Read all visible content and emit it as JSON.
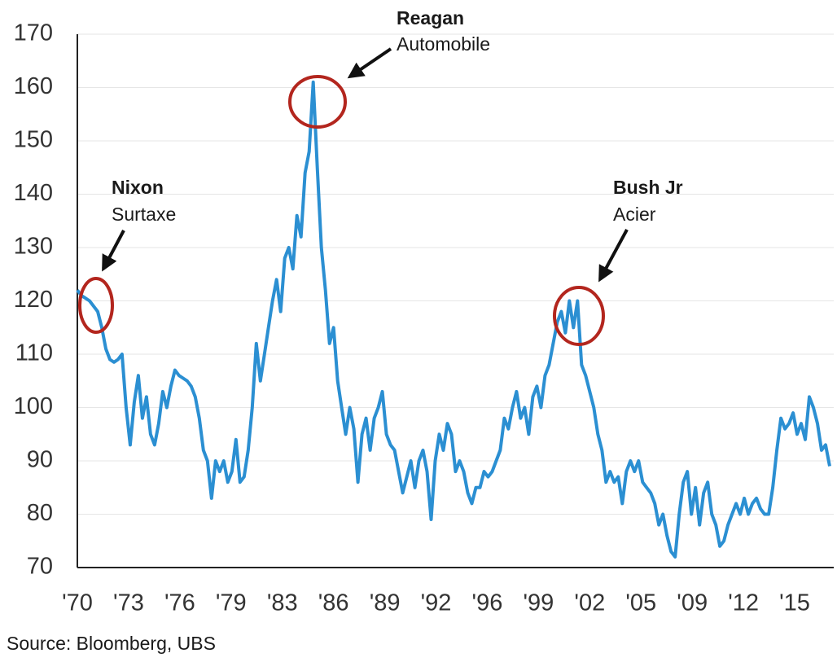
{
  "chart_data": {
    "type": "line",
    "annotations": [
      {
        "title": "Nixon",
        "text": "Surtaxe"
      },
      {
        "title": "Reagan",
        "text": "Automobile"
      },
      {
        "title": "Bush Jr",
        "text": "Acier"
      }
    ],
    "source": "Source: Bloomberg, UBS",
    "color": "#2b8fd2",
    "grid": true,
    "ylim": [
      70,
      170
    ],
    "yticks": [
      70,
      80,
      90,
      100,
      110,
      120,
      130,
      140,
      150,
      160,
      170
    ],
    "xlim": [
      1970,
      2016.4
    ],
    "xticks": [
      {
        "value": 1970,
        "label": "'70"
      },
      {
        "value": 1973.15,
        "label": "'73"
      },
      {
        "value": 1976.3,
        "label": "'76"
      },
      {
        "value": 1979.45,
        "label": "'79"
      },
      {
        "value": 1982.6,
        "label": "'83"
      },
      {
        "value": 1985.75,
        "label": "'86"
      },
      {
        "value": 1988.9,
        "label": "'89"
      },
      {
        "value": 1992.05,
        "label": "'92"
      },
      {
        "value": 1995.2,
        "label": "'96"
      },
      {
        "value": 1998.35,
        "label": "'99"
      },
      {
        "value": 2001.5,
        "label": "'02"
      },
      {
        "value": 2004.65,
        "label": "'05"
      },
      {
        "value": 2007.8,
        "label": "'09"
      },
      {
        "value": 2010.95,
        "label": "'12"
      },
      {
        "value": 2014.1,
        "label": "'15"
      }
    ],
    "x": [
      1970,
      1970.25,
      1970.5,
      1970.75,
      1971,
      1971.25,
      1971.5,
      1971.75,
      1972,
      1972.25,
      1972.5,
      1972.75,
      1973,
      1973.25,
      1973.5,
      1973.75,
      1974,
      1974.25,
      1974.5,
      1974.75,
      1975,
      1975.25,
      1975.5,
      1975.75,
      1976,
      1976.25,
      1976.5,
      1976.75,
      1977,
      1977.25,
      1977.5,
      1977.75,
      1978,
      1978.25,
      1978.5,
      1978.75,
      1979,
      1979.25,
      1979.5,
      1979.75,
      1980,
      1980.25,
      1980.5,
      1980.75,
      1981,
      1981.25,
      1981.5,
      1981.75,
      1982,
      1982.25,
      1982.5,
      1982.75,
      1983,
      1983.25,
      1983.5,
      1983.75,
      1984,
      1984.25,
      1984.5,
      1984.75,
      1985,
      1985.25,
      1985.5,
      1985.75,
      1986,
      1986.25,
      1986.5,
      1986.75,
      1987,
      1987.25,
      1987.5,
      1987.75,
      1988,
      1988.25,
      1988.5,
      1988.75,
      1989,
      1989.25,
      1989.5,
      1989.75,
      1990,
      1990.25,
      1990.5,
      1990.75,
      1991,
      1991.25,
      1991.5,
      1991.75,
      1992,
      1992.25,
      1992.5,
      1992.75,
      1993,
      1993.25,
      1993.5,
      1993.75,
      1994,
      1994.25,
      1994.5,
      1994.75,
      1995,
      1995.25,
      1995.5,
      1995.75,
      1996,
      1996.25,
      1996.5,
      1996.75,
      1997,
      1997.25,
      1997.5,
      1997.75,
      1998,
      1998.25,
      1998.5,
      1998.75,
      1999,
      1999.25,
      1999.5,
      1999.75,
      2000,
      2000.25,
      2000.5,
      2000.75,
      2001,
      2001.25,
      2001.5,
      2001.75,
      2002,
      2002.25,
      2002.5,
      2002.75,
      2003,
      2003.25,
      2003.5,
      2003.75,
      2004,
      2004.25,
      2004.5,
      2004.75,
      2005,
      2005.25,
      2005.5,
      2005.75,
      2006,
      2006.25,
      2006.5,
      2006.75,
      2007,
      2007.25,
      2007.5,
      2007.75,
      2008,
      2008.25,
      2008.5,
      2008.75,
      2009,
      2009.25,
      2009.5,
      2009.75,
      2010,
      2010.25,
      2010.5,
      2010.75,
      2011,
      2011.25,
      2011.5,
      2011.75,
      2012,
      2012.25,
      2012.5,
      2012.75,
      2013,
      2013.25,
      2013.5,
      2013.75,
      2014,
      2014.25,
      2014.5,
      2014.75,
      2015,
      2015.25,
      2015.5,
      2015.75,
      2016,
      2016.25
    ],
    "values": [
      122,
      121,
      120.5,
      120,
      119,
      118,
      115,
      111,
      109,
      108.5,
      109,
      110,
      100,
      93,
      101,
      106,
      98,
      102,
      95,
      93,
      97,
      103,
      100,
      104,
      107,
      106,
      105.5,
      105,
      104,
      102,
      98,
      92,
      90,
      83,
      90,
      88,
      90,
      86,
      88,
      94,
      86,
      87,
      92,
      100,
      112,
      105,
      110,
      115,
      120,
      124,
      118,
      128,
      130,
      126,
      136,
      132,
      144,
      148,
      161,
      145,
      130,
      122,
      112,
      115,
      105,
      100,
      95,
      100,
      96,
      86,
      95,
      98,
      92,
      98,
      100,
      103,
      95,
      93,
      92,
      88,
      84,
      87,
      90,
      85,
      90,
      92,
      88,
      79,
      90,
      95,
      92,
      97,
      95,
      88,
      90,
      88,
      84,
      82,
      85,
      85,
      88,
      87,
      88,
      90,
      92,
      98,
      96,
      100,
      103,
      98,
      100,
      95,
      102,
      104,
      100,
      106,
      108,
      112,
      116,
      118,
      114,
      120,
      115,
      120,
      108,
      106,
      103,
      100,
      95,
      92,
      86,
      88,
      86,
      87,
      82,
      88,
      90,
      88,
      90,
      86,
      85,
      84,
      82,
      78,
      80,
      76,
      73,
      72,
      80,
      86,
      88,
      80,
      85,
      78,
      84,
      86,
      80,
      78,
      74,
      75,
      78,
      80,
      82,
      80,
      83,
      80,
      82,
      83,
      81,
      80,
      80,
      85,
      92,
      98,
      96,
      97,
      99,
      95,
      97,
      94,
      102,
      100,
      97,
      92,
      93,
      89
    ]
  }
}
